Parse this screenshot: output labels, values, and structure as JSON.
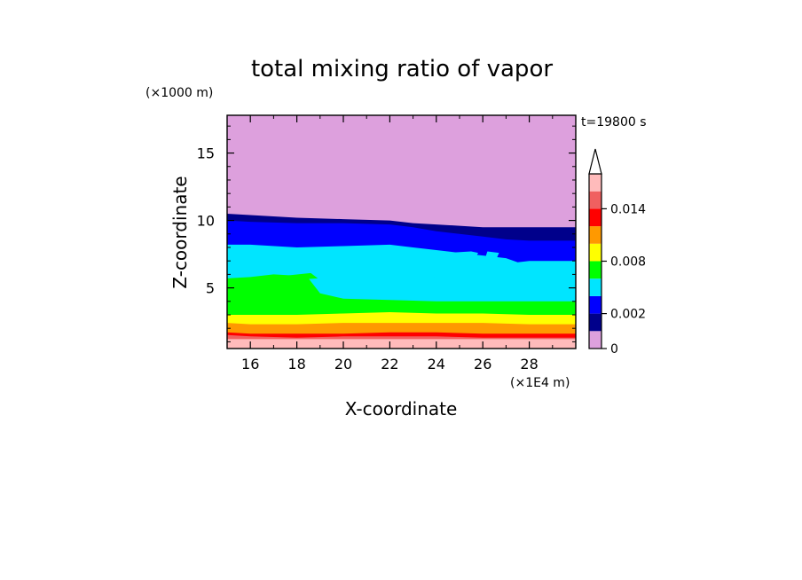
{
  "chart_data": {
    "type": "heatmap",
    "title": "total mixing ratio of vapor",
    "xlabel": "X-coordinate",
    "ylabel": "Z-coordinate",
    "x_unit": "(×1E4 m)",
    "y_unit": "(×1000 m)",
    "time_label": "t=19800 s",
    "xlim": [
      15,
      30
    ],
    "ylim": [
      0.5,
      17.8
    ],
    "x_ticks": [
      16,
      18,
      20,
      22,
      24,
      26,
      28
    ],
    "y_ticks": [
      5,
      10,
      15
    ],
    "colorbar": {
      "levels": [
        0,
        0.001,
        0.002,
        0.004,
        0.006,
        0.008,
        0.01,
        0.012,
        0.014,
        0.016
      ],
      "tick_values": [
        0,
        0.002,
        0.008,
        0.014
      ],
      "tick_labels": [
        "0",
        "0.002",
        "0.008",
        "0.014"
      ],
      "colors": [
        "#dda0dd",
        "#00008b",
        "#0000ff",
        "#00e5ff",
        "#00ff00",
        "#ffff00",
        "#ff9900",
        "#ff0000",
        "#f06060",
        "#ffbbbb"
      ],
      "extend": "max"
    },
    "bands": [
      {
        "level": 1,
        "color": "#00008b",
        "top": [
          [
            15,
            10.5
          ],
          [
            16,
            10.4
          ],
          [
            18,
            10.2
          ],
          [
            20,
            10.1
          ],
          [
            22,
            10.0
          ],
          [
            23,
            9.8
          ],
          [
            24,
            9.7
          ],
          [
            26,
            9.5
          ],
          [
            28,
            9.5
          ],
          [
            30,
            9.5
          ]
        ]
      },
      {
        "level": 2,
        "color": "#0000ff",
        "top": [
          [
            15,
            10.0
          ],
          [
            16,
            9.9
          ],
          [
            18,
            9.8
          ],
          [
            20,
            9.8
          ],
          [
            22,
            9.7
          ],
          [
            23,
            9.5
          ],
          [
            24,
            9.2
          ],
          [
            25,
            9.0
          ],
          [
            26,
            8.8
          ],
          [
            27,
            8.6
          ],
          [
            28,
            8.5
          ],
          [
            30,
            8.5
          ]
        ]
      },
      {
        "level": 3,
        "color": "#00e5ff",
        "top": [
          [
            15,
            8.2
          ],
          [
            16,
            8.2
          ],
          [
            18,
            8.0
          ],
          [
            20,
            8.1
          ],
          [
            22,
            8.2
          ],
          [
            23,
            8.0
          ],
          [
            24,
            7.8
          ],
          [
            25,
            7.6
          ],
          [
            26,
            7.4
          ],
          [
            27,
            7.2
          ],
          [
            27.5,
            6.9
          ],
          [
            28,
            7.0
          ],
          [
            30,
            7.0
          ]
        ]
      },
      {
        "level": 4,
        "color": "#00ff00",
        "top": [
          [
            15,
            5.7
          ],
          [
            16,
            5.8
          ],
          [
            17,
            6.0
          ],
          [
            18,
            5.9
          ],
          [
            18.5,
            5.7
          ],
          [
            19,
            4.6
          ],
          [
            20,
            4.2
          ],
          [
            22,
            4.1
          ],
          [
            24,
            4.0
          ],
          [
            26,
            4.0
          ],
          [
            28,
            4.0
          ],
          [
            30,
            4.0
          ]
        ]
      },
      {
        "level": 5,
        "color": "#ffff00",
        "top": [
          [
            15,
            3.0
          ],
          [
            16,
            3.0
          ],
          [
            18,
            3.0
          ],
          [
            20,
            3.1
          ],
          [
            22,
            3.2
          ],
          [
            24,
            3.1
          ],
          [
            26,
            3.1
          ],
          [
            28,
            3.0
          ],
          [
            30,
            3.0
          ]
        ]
      },
      {
        "level": 6,
        "color": "#ff9900",
        "top": [
          [
            15,
            2.4
          ],
          [
            16,
            2.3
          ],
          [
            18,
            2.3
          ],
          [
            20,
            2.4
          ],
          [
            22,
            2.4
          ],
          [
            24,
            2.4
          ],
          [
            26,
            2.4
          ],
          [
            28,
            2.3
          ],
          [
            30,
            2.3
          ]
        ]
      },
      {
        "level": 7,
        "color": "#ff0000",
        "top": [
          [
            15,
            1.7
          ],
          [
            16,
            1.6
          ],
          [
            18,
            1.6
          ],
          [
            20,
            1.6
          ],
          [
            22,
            1.7
          ],
          [
            24,
            1.7
          ],
          [
            26,
            1.6
          ],
          [
            28,
            1.6
          ],
          [
            30,
            1.6
          ]
        ]
      },
      {
        "level": 8,
        "color": "#f06060",
        "top": [
          [
            15,
            1.5
          ],
          [
            16,
            1.4
          ],
          [
            18,
            1.3
          ],
          [
            20,
            1.4
          ],
          [
            22,
            1.4
          ],
          [
            24,
            1.4
          ],
          [
            26,
            1.3
          ],
          [
            28,
            1.3
          ],
          [
            30,
            1.3
          ]
        ]
      },
      {
        "level": 9,
        "color": "#ffbbbb",
        "top": [
          [
            15,
            1.2
          ],
          [
            16,
            1.2
          ],
          [
            18,
            1.2
          ],
          [
            20,
            1.2
          ],
          [
            22,
            1.2
          ],
          [
            24,
            1.2
          ],
          [
            26,
            1.2
          ],
          [
            28,
            1.2
          ],
          [
            30,
            1.2
          ]
        ]
      }
    ],
    "patches": [
      {
        "level": 3,
        "color": "#00e5ff",
        "polygon": [
          [
            23.2,
            6.6
          ],
          [
            23.8,
            7.4
          ],
          [
            24.5,
            7.6
          ],
          [
            25.5,
            7.7
          ],
          [
            25.8,
            7.6
          ],
          [
            25.6,
            7.0
          ],
          [
            25.0,
            6.8
          ],
          [
            24.2,
            6.6
          ],
          [
            24.0,
            5.8
          ],
          [
            23.5,
            5.7
          ]
        ]
      },
      {
        "level": 3,
        "color": "#00e5ff",
        "polygon": [
          [
            26.1,
            7.2
          ],
          [
            26.6,
            7.2
          ],
          [
            26.7,
            7.6
          ],
          [
            26.2,
            7.7
          ]
        ]
      },
      {
        "level": 4,
        "color": "#00ff00",
        "polygon": [
          [
            15,
            4.8
          ],
          [
            16.5,
            5.2
          ],
          [
            18.0,
            5.6
          ],
          [
            18.9,
            5.7
          ],
          [
            18.6,
            6.1
          ],
          [
            17.5,
            5.9
          ],
          [
            16.2,
            5.7
          ],
          [
            15,
            5.5
          ]
        ]
      }
    ],
    "grid": false
  }
}
